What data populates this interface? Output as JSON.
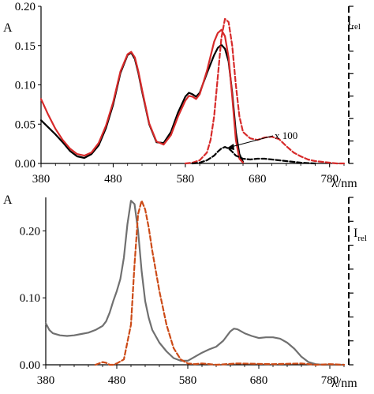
{
  "chart_data": [
    {
      "type": "line",
      "ylabel": "A",
      "right_ylabel": "I",
      "right_ylabel_sub": "rel",
      "xlabel": "λ/nm",
      "xlim": [
        380,
        800
      ],
      "ylim": [
        0,
        0.2
      ],
      "x_ticks": [
        380,
        480,
        580,
        680,
        780
      ],
      "y_ticks": [
        "0.00",
        "0.05",
        "0.10",
        "0.15",
        "0.20"
      ],
      "annotation": "x 100",
      "grid": false,
      "series": [
        {
          "color": "#000000",
          "dash": "solid",
          "axis": "left",
          "x": [
            380,
            390,
            400,
            410,
            420,
            430,
            440,
            450,
            460,
            470,
            480,
            490,
            500,
            505,
            510,
            515,
            520,
            530,
            540,
            550,
            560,
            570,
            580,
            585,
            590,
            595,
            600,
            610,
            620,
            625,
            630,
            635,
            640,
            645,
            650,
            655,
            660
          ],
          "y": [
            0.055,
            0.046,
            0.037,
            0.027,
            0.016,
            0.009,
            0.007,
            0.012,
            0.023,
            0.045,
            0.075,
            0.115,
            0.138,
            0.141,
            0.133,
            0.115,
            0.092,
            0.05,
            0.027,
            0.026,
            0.04,
            0.065,
            0.085,
            0.09,
            0.088,
            0.085,
            0.09,
            0.115,
            0.138,
            0.147,
            0.151,
            0.146,
            0.13,
            0.09,
            0.04,
            0.012,
            0.002
          ]
        },
        {
          "color": "#d72a2a",
          "dash": "solid",
          "axis": "left",
          "x": [
            380,
            390,
            400,
            410,
            420,
            430,
            440,
            450,
            460,
            470,
            480,
            490,
            500,
            505,
            510,
            515,
            520,
            530,
            540,
            550,
            560,
            570,
            580,
            585,
            590,
            595,
            600,
            610,
            620,
            625,
            630,
            635,
            640,
            645,
            650,
            655,
            660
          ],
          "y": [
            0.082,
            0.062,
            0.044,
            0.03,
            0.019,
            0.012,
            0.01,
            0.014,
            0.026,
            0.048,
            0.078,
            0.117,
            0.139,
            0.142,
            0.135,
            0.117,
            0.094,
            0.051,
            0.028,
            0.024,
            0.036,
            0.06,
            0.08,
            0.086,
            0.085,
            0.082,
            0.088,
            0.118,
            0.155,
            0.166,
            0.17,
            0.162,
            0.135,
            0.085,
            0.03,
            0.006,
            0.001
          ]
        },
        {
          "color": "#d72a2a",
          "dash": "dashed",
          "axis": "right",
          "x": [
            580,
            590,
            600,
            610,
            615,
            620,
            625,
            630,
            635,
            640,
            645,
            650,
            655,
            660,
            670,
            680,
            690,
            700,
            710,
            720,
            730,
            740,
            750,
            760,
            770,
            780,
            790,
            800
          ],
          "y": [
            0.0,
            0.001,
            0.004,
            0.014,
            0.03,
            0.06,
            0.11,
            0.16,
            0.184,
            0.18,
            0.15,
            0.1,
            0.06,
            0.04,
            0.032,
            0.03,
            0.033,
            0.034,
            0.031,
            0.022,
            0.014,
            0.009,
            0.005,
            0.003,
            0.002,
            0.001,
            0.0,
            0.0
          ]
        },
        {
          "color": "#000000",
          "dash": "dashed",
          "axis": "right",
          "x": [
            590,
            600,
            610,
            620,
            625,
            630,
            635,
            640,
            645,
            650,
            660,
            670,
            680,
            690,
            700,
            710,
            720,
            740,
            760
          ],
          "y": [
            0.0,
            0.001,
            0.004,
            0.01,
            0.015,
            0.019,
            0.021,
            0.019,
            0.015,
            0.01,
            0.006,
            0.005,
            0.006,
            0.006,
            0.005,
            0.004,
            0.003,
            0.001,
            0.0
          ]
        }
      ]
    },
    {
      "type": "line",
      "ylabel": "A",
      "right_ylabel": "I",
      "right_ylabel_sub": "rel",
      "xlabel": "λ/nm",
      "xlim": [
        380,
        800
      ],
      "ylim": [
        0,
        0.25
      ],
      "x_ticks": [
        380,
        480,
        580,
        680,
        780
      ],
      "y_ticks": [
        "0.00",
        "0.10",
        "0.20"
      ],
      "grid": false,
      "series": [
        {
          "color": "#707070",
          "dash": "solid",
          "axis": "left",
          "x": [
            380,
            385,
            390,
            400,
            410,
            420,
            430,
            440,
            450,
            460,
            465,
            470,
            475,
            480,
            485,
            490,
            495,
            500,
            505,
            510,
            515,
            520,
            525,
            530,
            540,
            550,
            560,
            570,
            580,
            590,
            600,
            610,
            620,
            630,
            640,
            645,
            650,
            660,
            670,
            680,
            690,
            700,
            710,
            720,
            730,
            740,
            750,
            760,
            770,
            780,
            790,
            800
          ],
          "y": [
            0.062,
            0.052,
            0.047,
            0.044,
            0.043,
            0.044,
            0.046,
            0.048,
            0.052,
            0.058,
            0.065,
            0.078,
            0.095,
            0.11,
            0.128,
            0.16,
            0.21,
            0.245,
            0.24,
            0.2,
            0.14,
            0.095,
            0.07,
            0.052,
            0.033,
            0.02,
            0.01,
            0.006,
            0.006,
            0.012,
            0.018,
            0.023,
            0.027,
            0.036,
            0.05,
            0.054,
            0.053,
            0.047,
            0.043,
            0.04,
            0.041,
            0.041,
            0.039,
            0.033,
            0.024,
            0.012,
            0.004,
            0.001,
            0.0,
            0.0,
            0.0,
            0.0
          ]
        },
        {
          "color": "#cc4a16",
          "dash": "dashed",
          "axis": "right",
          "x": [
            450,
            460,
            465,
            470,
            475,
            480,
            490,
            500,
            505,
            510,
            515,
            520,
            525,
            530,
            540,
            550,
            560,
            570,
            580,
            590,
            600,
            620,
            650,
            700,
            740,
            760,
            780,
            800
          ],
          "y": [
            0.0,
            0.004,
            0.003,
            0.0,
            0.0,
            0.002,
            0.008,
            0.06,
            0.15,
            0.225,
            0.245,
            0.232,
            0.205,
            0.17,
            0.11,
            0.06,
            0.025,
            0.008,
            0.002,
            0.001,
            0.002,
            0.0,
            0.002,
            0.001,
            0.002,
            0.0,
            0.001,
            0.0
          ]
        }
      ]
    }
  ]
}
